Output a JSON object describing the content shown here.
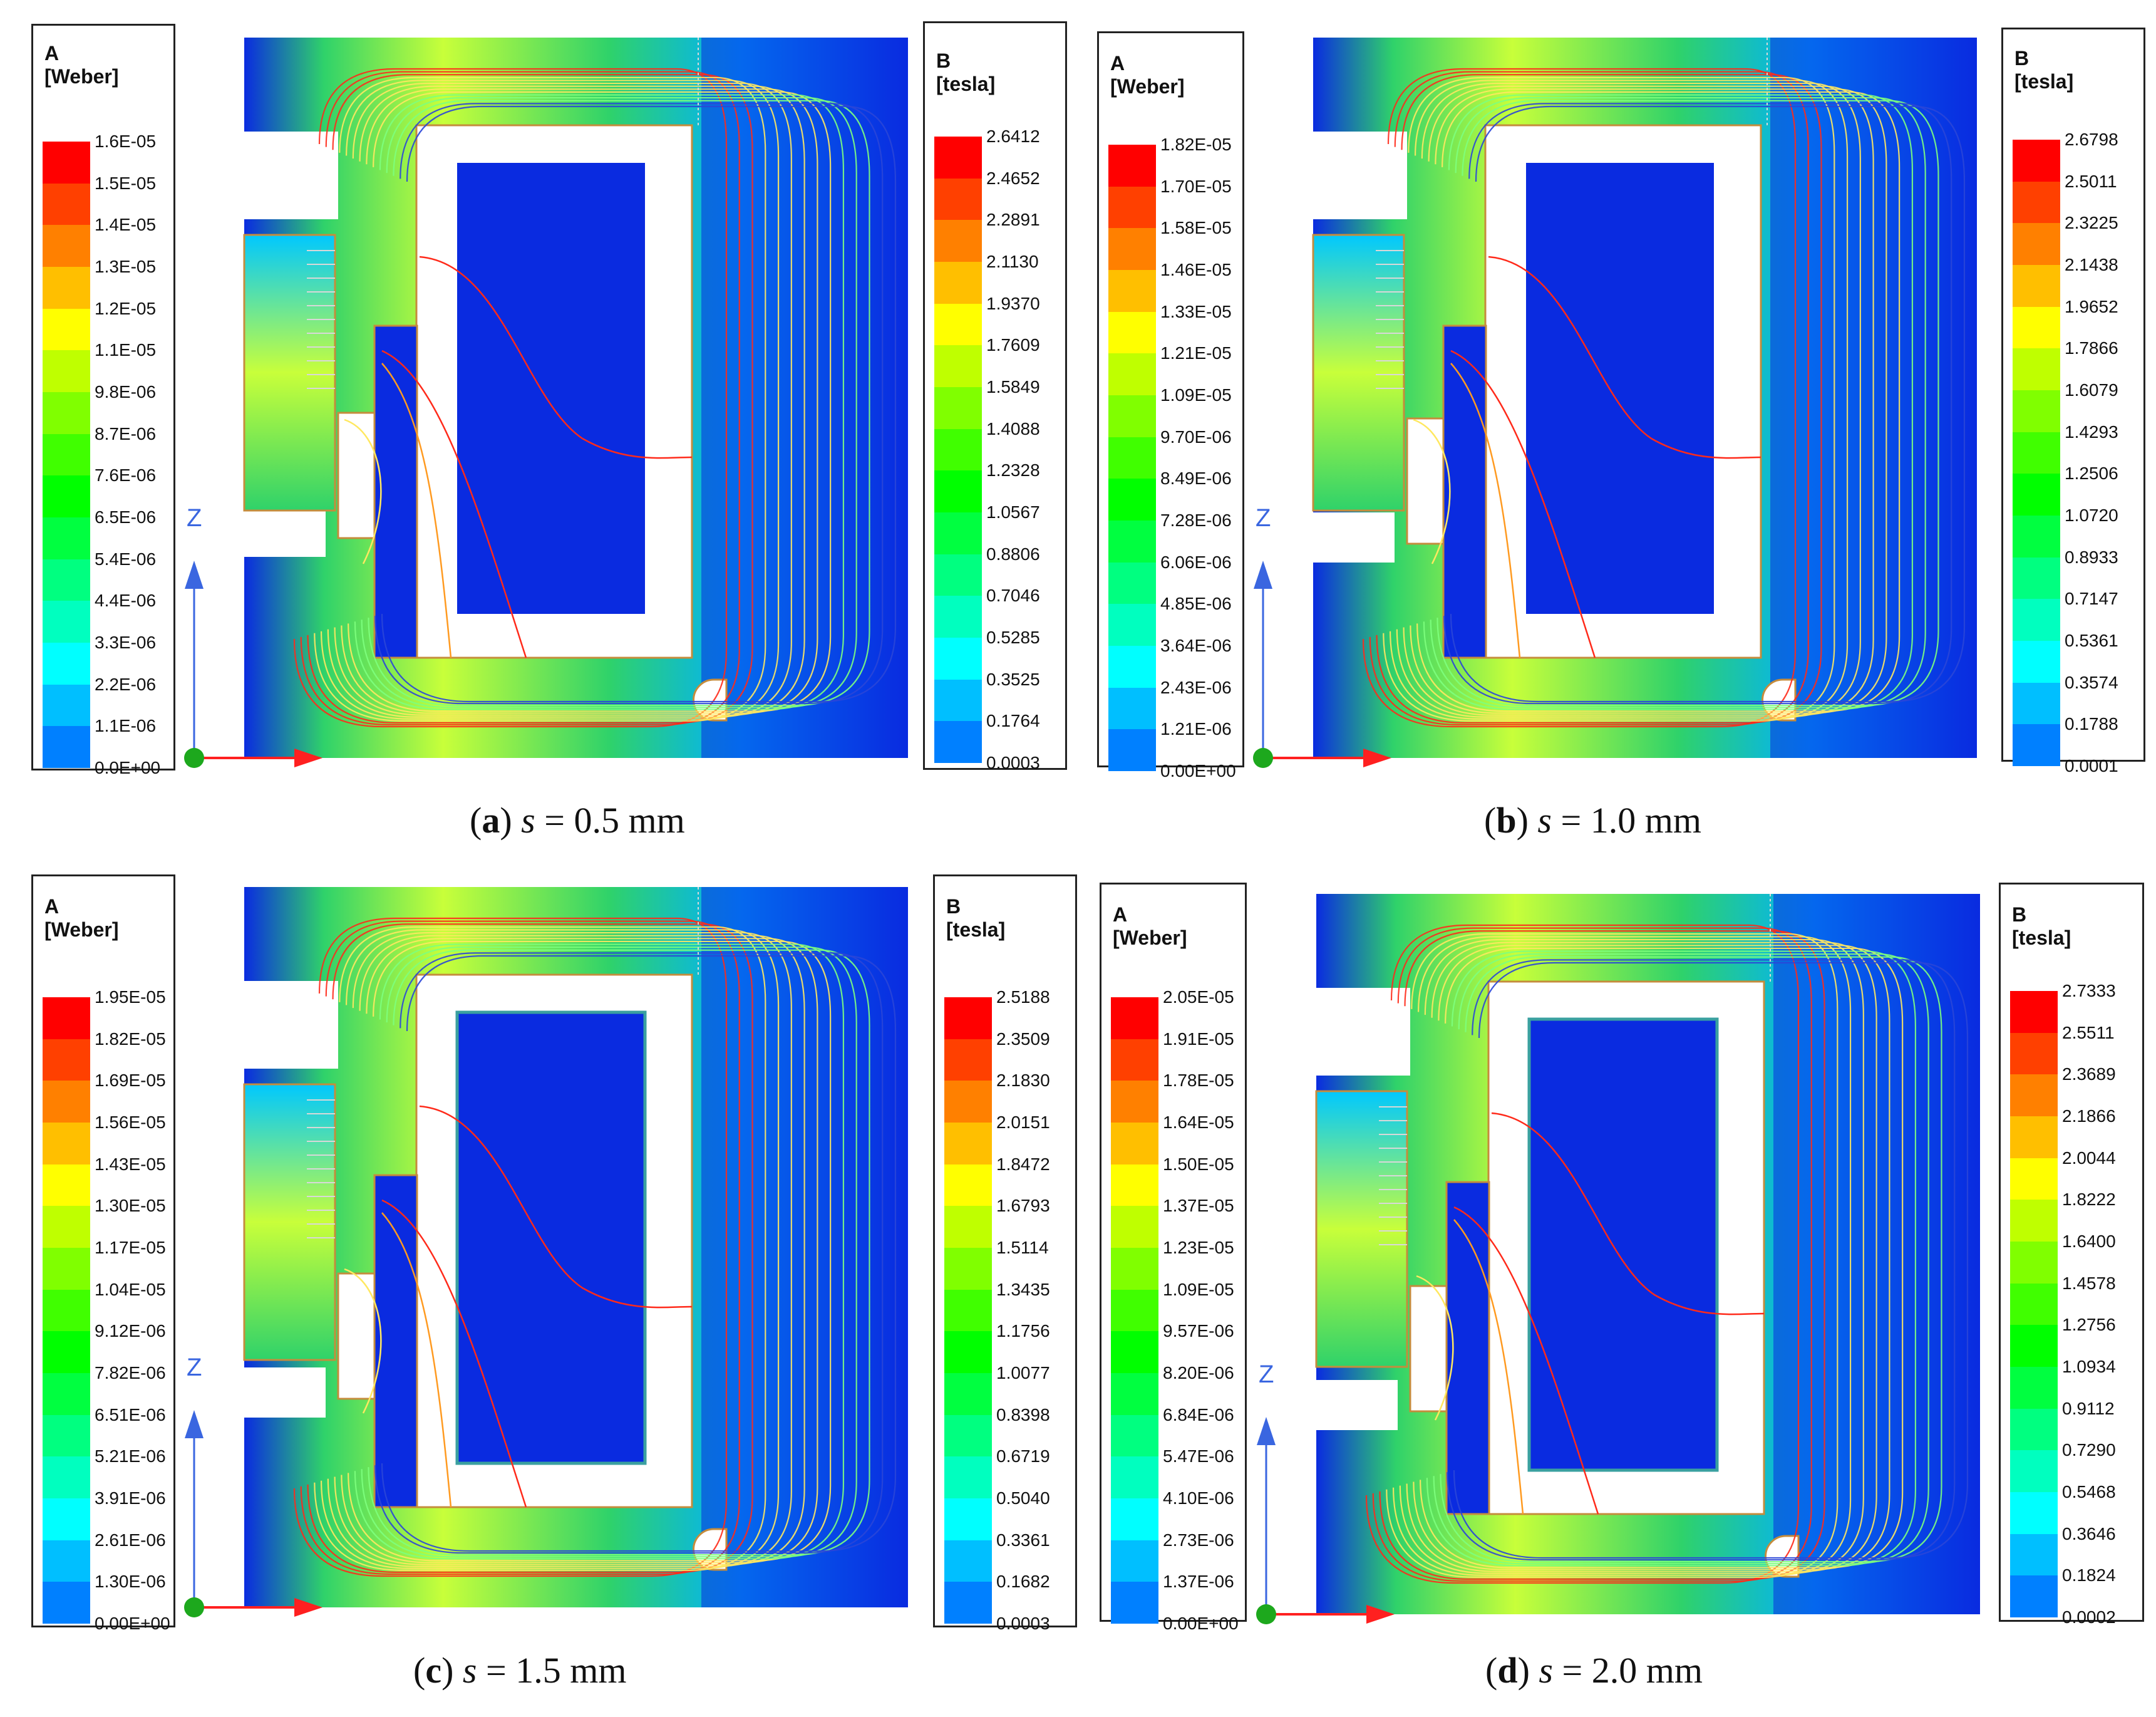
{
  "panels": [
    {
      "id": "a",
      "letter": "a",
      "variable": "s",
      "value": "0.5 mm",
      "a_legend": {
        "name": "A",
        "unit": "[Weber]",
        "values": [
          "1.6E-05",
          "1.5E-05",
          "1.4E-05",
          "1.3E-05",
          "1.2E-05",
          "1.1E-05",
          "9.8E-06",
          "8.7E-06",
          "7.6E-06",
          "6.5E-06",
          "5.4E-06",
          "4.4E-06",
          "3.3E-06",
          "2.2E-06",
          "1.1E-06",
          "0.0E+00"
        ]
      },
      "b_legend": {
        "name": "B",
        "unit": "[tesla]",
        "values": [
          "2.6412",
          "2.4652",
          "2.2891",
          "2.1130",
          "1.9370",
          "1.7609",
          "1.5849",
          "1.4088",
          "1.2328",
          "1.0567",
          "0.8806",
          "0.7046",
          "0.5285",
          "0.3525",
          "0.1764",
          "0.0003"
        ]
      }
    },
    {
      "id": "b",
      "letter": "b",
      "variable": "s",
      "value": "1.0 mm",
      "a_legend": {
        "name": "A",
        "unit": "[Weber]",
        "values": [
          "1.82E-05",
          "1.70E-05",
          "1.58E-05",
          "1.46E-05",
          "1.33E-05",
          "1.21E-05",
          "1.09E-05",
          "9.70E-06",
          "8.49E-06",
          "7.28E-06",
          "6.06E-06",
          "4.85E-06",
          "3.64E-06",
          "2.43E-06",
          "1.21E-06",
          "0.00E+00"
        ]
      },
      "b_legend": {
        "name": "B",
        "unit": "[tesla]",
        "values": [
          "2.6798",
          "2.5011",
          "2.3225",
          "2.1438",
          "1.9652",
          "1.7866",
          "1.6079",
          "1.4293",
          "1.2506",
          "1.0720",
          "0.8933",
          "0.7147",
          "0.5361",
          "0.3574",
          "0.1788",
          "0.0001"
        ]
      }
    },
    {
      "id": "c",
      "letter": "c",
      "variable": "s",
      "value": "1.5 mm",
      "a_legend": {
        "name": "A",
        "unit": "[Weber]",
        "values": [
          "1.95E-05",
          "1.82E-05",
          "1.69E-05",
          "1.56E-05",
          "1.43E-05",
          "1.30E-05",
          "1.17E-05",
          "1.04E-05",
          "9.12E-06",
          "7.82E-06",
          "6.51E-06",
          "5.21E-06",
          "3.91E-06",
          "2.61E-06",
          "1.30E-06",
          "0.00E+00"
        ]
      },
      "b_legend": {
        "name": "B",
        "unit": "[tesla]",
        "values": [
          "2.5188",
          "2.3509",
          "2.1830",
          "2.0151",
          "1.8472",
          "1.6793",
          "1.5114",
          "1.3435",
          "1.1756",
          "1.0077",
          "0.8398",
          "0.6719",
          "0.5040",
          "0.3361",
          "0.1682",
          "0.0003"
        ]
      }
    },
    {
      "id": "d",
      "letter": "d",
      "variable": "s",
      "value": "2.0 mm",
      "a_legend": {
        "name": "A",
        "unit": "[Weber]",
        "values": [
          "2.05E-05",
          "1.91E-05",
          "1.78E-05",
          "1.64E-05",
          "1.50E-05",
          "1.37E-05",
          "1.23E-05",
          "1.09E-05",
          "9.57E-06",
          "8.20E-06",
          "6.84E-06",
          "5.47E-06",
          "4.10E-06",
          "2.73E-06",
          "1.37E-06",
          "0.00E+00"
        ]
      },
      "b_legend": {
        "name": "B",
        "unit": "[tesla]",
        "values": [
          "2.7333",
          "2.5511",
          "2.3689",
          "2.1866",
          "2.0044",
          "1.8222",
          "1.6400",
          "1.4578",
          "1.2756",
          "1.0934",
          "0.9112",
          "0.7290",
          "0.5468",
          "0.3646",
          "0.1824",
          "0.0002"
        ]
      }
    }
  ],
  "axis_label": "Z",
  "colormap": [
    "#ff0000",
    "#ff4000",
    "#ff8000",
    "#ffbf00",
    "#ffff00",
    "#bfff00",
    "#80ff00",
    "#40ff00",
    "#00ff00",
    "#00ff40",
    "#00ff80",
    "#00ffbf",
    "#00ffff",
    "#00bfff",
    "#0080ff",
    "#0040ff",
    "#0000ff"
  ],
  "colors": {
    "iron_low": "#0a2be0",
    "iron_mid": "#2fd26a",
    "iron_high": "#c8ff3a",
    "air": "#ffffff",
    "outline": "#c58c3c",
    "flux_red": "#ff2a1a",
    "flux_yellow": "#ffe860",
    "flux_green": "#7dff7d",
    "flux_blue": "#2a46d8",
    "axis_x": "#ff2020",
    "axis_z": "#3a66e0",
    "origin": "#1da81d"
  }
}
